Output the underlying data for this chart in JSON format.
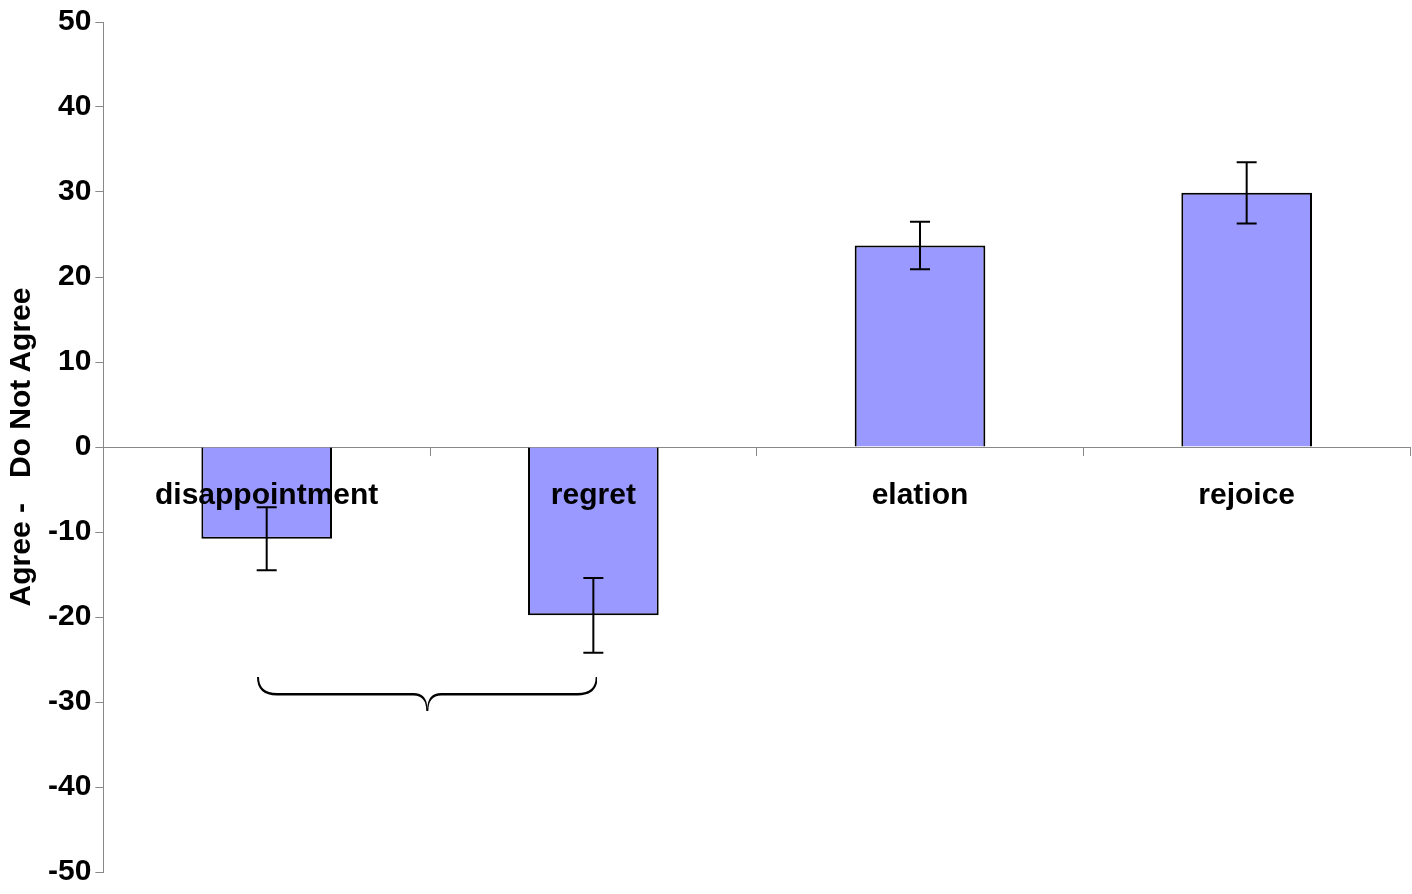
{
  "chart_data": {
    "type": "bar",
    "ylabel": "Agree -   Do Not Agree",
    "categories": [
      "disappointment",
      "regret",
      "elation",
      "rejoice"
    ],
    "values": [
      -10.8,
      -19.8,
      23.7,
      29.9
    ],
    "errors": [
      3.7,
      4.4,
      2.8,
      3.6
    ],
    "color": "#9999ff",
    "ylim": [
      -50,
      50
    ],
    "yticks": [
      -50,
      -40,
      -30,
      -20,
      -10,
      0,
      10,
      20,
      30,
      40,
      50
    ],
    "grid": false,
    "legend": false
  }
}
